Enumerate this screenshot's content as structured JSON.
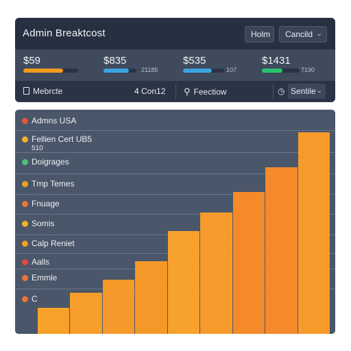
{
  "header": {
    "title": "Admin Breaktcost",
    "home_label": "Holm",
    "cancel_label": "Cancild"
  },
  "kpis": [
    {
      "value": "$59",
      "progress": 0.72,
      "color": "#f39a1e",
      "sub": ""
    },
    {
      "value": "$835",
      "progress": 0.77,
      "color": "#3aa3e0",
      "sub": "21185"
    },
    {
      "value": "$535",
      "progress": 0.7,
      "color": "#3aa3e0",
      "sub": "107"
    },
    {
      "value": "$1431",
      "progress": 0.55,
      "color": "#27c46a",
      "sub": "7190"
    }
  ],
  "filters": {
    "module_label": "Mebrcte",
    "count_label": "4 Con12",
    "search_label": "Feectiow",
    "sort_label": "Sentile"
  },
  "rows": [
    {
      "label": "Admns USA",
      "icon_color": "#e05a3a"
    },
    {
      "label": "Fellien Cert UB5",
      "label2": "510",
      "icon_color": "#f0b229"
    },
    {
      "label": "Doigrages",
      "icon_color": "#4fc07a"
    },
    {
      "label": "Tmp Temes",
      "icon_color": "#f0a020"
    },
    {
      "label": "Fnuage",
      "icon_color": "#e8743a"
    },
    {
      "label": "Somis",
      "icon_color": "#f0b229"
    },
    {
      "label": "Calp Reniet",
      "icon_color": "#f0a020"
    },
    {
      "label": "Aalls",
      "icon_color": "#e04a3a"
    },
    {
      "label": "Emmle",
      "icon_color": "#e8743a"
    },
    {
      "label": "C",
      "icon_color": "#e8743a"
    }
  ],
  "chart_data": {
    "type": "bar",
    "values": [
      1.4,
      2.2,
      2.9,
      3.9,
      5.5,
      6.5,
      7.6,
      8.9,
      10.8
    ],
    "colors": [
      "#f7a12a",
      "#f79d2a",
      "#f59a2a",
      "#f5982a",
      "#f7a22c",
      "#f79a2c",
      "#f58a2a",
      "#f48a2c",
      "#f79a2c"
    ]
  },
  "icons": {
    "module": "document-icon",
    "search": "search-icon",
    "sort": "clock-icon"
  }
}
